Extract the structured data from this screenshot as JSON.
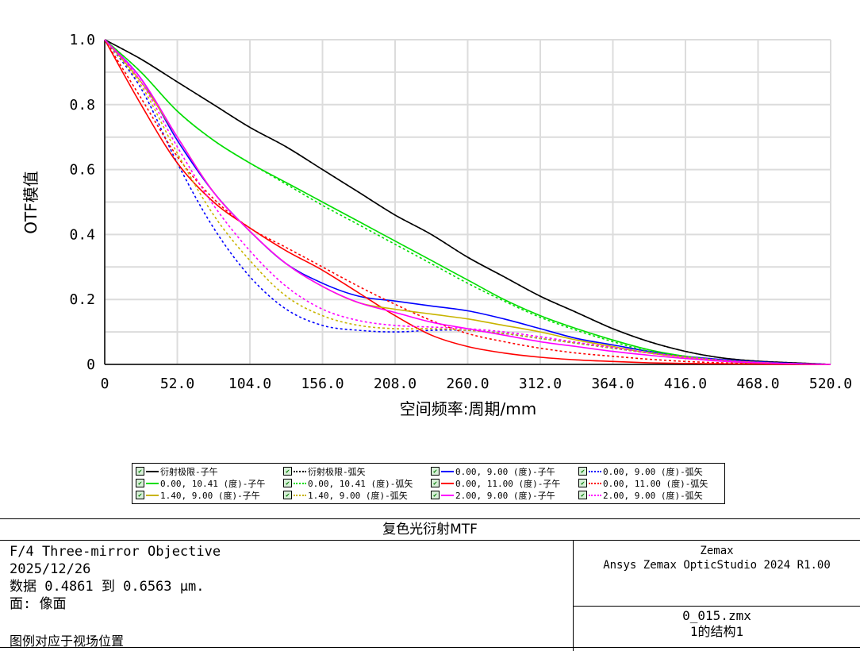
{
  "chart_data": {
    "type": "line",
    "xlabel": "空间频率:周期/mm",
    "ylabel": "OTF模值",
    "xlim": [
      0,
      520
    ],
    "ylim": [
      0,
      1
    ],
    "xticks": [
      "0",
      "52.0",
      "104.0",
      "156.0",
      "208.0",
      "260.0",
      "312.0",
      "364.0",
      "416.0",
      "468.0",
      "520.0"
    ],
    "yticks": [
      "0",
      "0.2",
      "0.4",
      "0.6",
      "0.8",
      "1.0"
    ],
    "grid": true,
    "legend_position": "bottom",
    "x": [
      0,
      26,
      52,
      78,
      104,
      130,
      156,
      182,
      208,
      234,
      260,
      286,
      312,
      338,
      364,
      390,
      416,
      442,
      468,
      494,
      520
    ],
    "series": [
      {
        "name": "衍射极限-子午",
        "color": "#000000",
        "dash": false,
        "values": [
          1.0,
          0.94,
          0.87,
          0.8,
          0.73,
          0.67,
          0.6,
          0.53,
          0.46,
          0.4,
          0.33,
          0.27,
          0.21,
          0.16,
          0.11,
          0.07,
          0.04,
          0.02,
          0.01,
          0.005,
          0.0
        ]
      },
      {
        "name": "衍射极限-弧矢",
        "color": "#000000",
        "dash": true,
        "values": [
          1.0,
          0.94,
          0.87,
          0.8,
          0.73,
          0.67,
          0.6,
          0.53,
          0.46,
          0.4,
          0.33,
          0.27,
          0.21,
          0.16,
          0.11,
          0.07,
          0.04,
          0.02,
          0.01,
          0.005,
          0.0
        ]
      },
      {
        "name": "0.00, 9.00 (度)-子午",
        "color": "#0000ff",
        "dash": false,
        "values": [
          1.0,
          0.88,
          0.69,
          0.53,
          0.41,
          0.31,
          0.25,
          0.21,
          0.195,
          0.18,
          0.165,
          0.14,
          0.11,
          0.08,
          0.06,
          0.04,
          0.025,
          0.015,
          0.008,
          0.003,
          0.0
        ]
      },
      {
        "name": "0.00, 9.00 (度)-弧矢",
        "color": "#0000ff",
        "dash": true,
        "values": [
          1.0,
          0.85,
          0.62,
          0.42,
          0.27,
          0.17,
          0.12,
          0.105,
          0.1,
          0.105,
          0.105,
          0.095,
          0.08,
          0.065,
          0.05,
          0.035,
          0.023,
          0.013,
          0.007,
          0.003,
          0.0
        ]
      },
      {
        "name": "0.00, 10.41 (度)-子午",
        "color": "#00dd00",
        "dash": false,
        "values": [
          1.0,
          0.9,
          0.78,
          0.69,
          0.62,
          0.56,
          0.5,
          0.44,
          0.38,
          0.32,
          0.26,
          0.2,
          0.15,
          0.11,
          0.075,
          0.045,
          0.025,
          0.012,
          0.005,
          0.002,
          0.0
        ]
      },
      {
        "name": "0.00, 10.41 (度)-弧矢",
        "color": "#00dd00",
        "dash": true,
        "values": [
          1.0,
          0.9,
          0.78,
          0.69,
          0.62,
          0.555,
          0.49,
          0.43,
          0.37,
          0.31,
          0.25,
          0.195,
          0.145,
          0.105,
          0.07,
          0.04,
          0.022,
          0.01,
          0.004,
          0.001,
          0.0
        ]
      },
      {
        "name": "0.00, 11.00 (度)-子午",
        "color": "#ff0000",
        "dash": false,
        "values": [
          1.0,
          0.8,
          0.62,
          0.5,
          0.42,
          0.35,
          0.29,
          0.22,
          0.15,
          0.09,
          0.055,
          0.035,
          0.022,
          0.014,
          0.009,
          0.005,
          0.003,
          0.002,
          0.001,
          0.0,
          0.0
        ]
      },
      {
        "name": "0.00, 11.00 (度)-弧矢",
        "color": "#ff0000",
        "dash": true,
        "values": [
          1.0,
          0.82,
          0.64,
          0.51,
          0.42,
          0.36,
          0.3,
          0.24,
          0.185,
          0.135,
          0.095,
          0.07,
          0.05,
          0.035,
          0.025,
          0.016,
          0.009,
          0.005,
          0.002,
          0.001,
          0.0
        ]
      },
      {
        "name": "1.40, 9.00 (度)-子午",
        "color": "#c8b400",
        "dash": false,
        "values": [
          1.0,
          0.87,
          0.7,
          0.53,
          0.41,
          0.31,
          0.24,
          0.19,
          0.17,
          0.155,
          0.14,
          0.12,
          0.1,
          0.075,
          0.055,
          0.035,
          0.022,
          0.012,
          0.006,
          0.002,
          0.0
        ]
      },
      {
        "name": "1.40, 9.00 (度)-弧矢",
        "color": "#c8b400",
        "dash": true,
        "values": [
          1.0,
          0.86,
          0.65,
          0.46,
          0.32,
          0.21,
          0.15,
          0.12,
          0.11,
          0.11,
          0.105,
          0.095,
          0.08,
          0.065,
          0.05,
          0.035,
          0.022,
          0.012,
          0.006,
          0.002,
          0.0
        ]
      },
      {
        "name": "2.00, 9.00 (度)-子午",
        "color": "#ff00ff",
        "dash": false,
        "values": [
          1.0,
          0.88,
          0.7,
          0.53,
          0.41,
          0.31,
          0.24,
          0.19,
          0.16,
          0.13,
          0.11,
          0.09,
          0.07,
          0.055,
          0.04,
          0.028,
          0.018,
          0.01,
          0.005,
          0.002,
          0.0
        ]
      },
      {
        "name": "2.00, 9.00 (度)-弧矢",
        "color": "#ff00ff",
        "dash": true,
        "values": [
          1.0,
          0.87,
          0.67,
          0.49,
          0.35,
          0.24,
          0.17,
          0.135,
          0.12,
          0.115,
          0.11,
          0.1,
          0.085,
          0.068,
          0.052,
          0.036,
          0.023,
          0.013,
          0.006,
          0.002,
          0.0
        ]
      }
    ]
  },
  "legend": {
    "check_glyph": "✔",
    "items": [
      {
        "label": "衍射极限-子午",
        "color": "#000000",
        "dash": false
      },
      {
        "label": "衍射极限-弧矢",
        "color": "#000000",
        "dash": true
      },
      {
        "label": "0.00, 9.00 (度)-子午",
        "color": "#0000ff",
        "dash": false
      },
      {
        "label": "0.00, 9.00 (度)-弧矢",
        "color": "#0000ff",
        "dash": true
      },
      {
        "label": "0.00, 10.41 (度)-子午",
        "color": "#00dd00",
        "dash": false
      },
      {
        "label": "0.00, 10.41 (度)-弧矢",
        "color": "#00dd00",
        "dash": true
      },
      {
        "label": "0.00, 11.00 (度)-子午",
        "color": "#ff0000",
        "dash": false
      },
      {
        "label": "0.00, 11.00 (度)-弧矢",
        "color": "#ff0000",
        "dash": true
      },
      {
        "label": "1.40, 9.00 (度)-子午",
        "color": "#c8b400",
        "dash": false
      },
      {
        "label": "1.40, 9.00 (度)-弧矢",
        "color": "#c8b400",
        "dash": true
      },
      {
        "label": "2.00, 9.00 (度)-子午",
        "color": "#ff00ff",
        "dash": false
      },
      {
        "label": "2.00, 9.00 (度)-弧矢",
        "color": "#ff00ff",
        "dash": true
      }
    ]
  },
  "info": {
    "title": "复色光衍射MTF",
    "lines": [
      "F/4 Three-mirror Objective",
      "2025/12/26",
      "数据 0.4861 到 0.6563 μm.",
      "面: 像面"
    ],
    "legend_note": "图例对应于视场位置",
    "vendor": "Zemax",
    "product": "Ansys Zemax OpticStudio 2024 R1.00",
    "file": "0_015.zmx",
    "config": "1的结构1"
  }
}
